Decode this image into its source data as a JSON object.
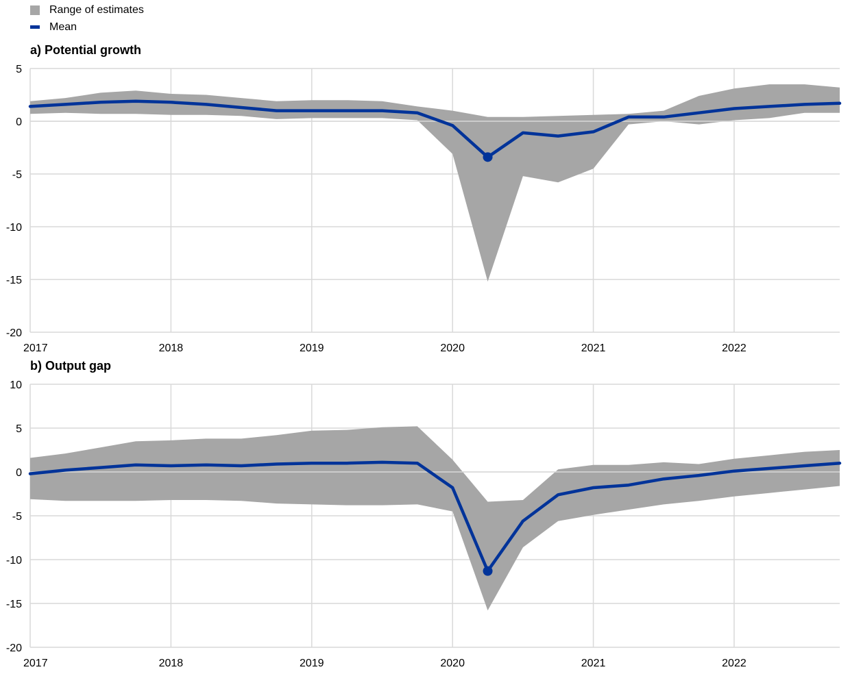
{
  "legend": {
    "range_label": "Range of estimates",
    "mean_label": "Mean",
    "range_color": "#a6a6a6",
    "mean_color": "#003399"
  },
  "chart_data": [
    {
      "type": "area",
      "title": "a) Potential growth",
      "ylim": [
        -20,
        5
      ],
      "yticks": [
        5,
        0,
        -5,
        -10,
        -15,
        -20
      ],
      "xlim": [
        2017,
        2022.75
      ],
      "xticks": [
        2017,
        2018,
        2019,
        2020,
        2021,
        2022
      ],
      "xticklabels": [
        "2017",
        "2018",
        "2019",
        "2020",
        "2021",
        "2022"
      ],
      "grid": true,
      "x": [
        2017.0,
        2017.25,
        2017.5,
        2017.75,
        2018.0,
        2018.25,
        2018.5,
        2018.75,
        2019.0,
        2019.25,
        2019.5,
        2019.75,
        2020.0,
        2020.25,
        2020.5,
        2020.75,
        2021.0,
        2021.25,
        2021.5,
        2021.75,
        2022.0,
        2022.25,
        2022.5,
        2022.75
      ],
      "series": [
        {
          "name": "Mean",
          "values": [
            1.4,
            1.6,
            1.8,
            1.9,
            1.8,
            1.6,
            1.3,
            1.0,
            1.0,
            1.0,
            1.0,
            0.8,
            -0.4,
            -3.4,
            -1.1,
            -1.4,
            -1.0,
            0.4,
            0.4,
            0.8,
            1.2,
            1.4,
            1.6,
            1.7
          ]
        },
        {
          "name": "Range of estimates - upper",
          "values": [
            1.9,
            2.2,
            2.7,
            2.9,
            2.6,
            2.5,
            2.2,
            1.9,
            2.0,
            2.0,
            1.9,
            1.4,
            1.0,
            0.4,
            0.4,
            0.5,
            0.6,
            0.7,
            1.0,
            2.4,
            3.1,
            3.5,
            3.5,
            3.2
          ]
        },
        {
          "name": "Range of estimates - lower",
          "values": [
            0.7,
            0.8,
            0.7,
            0.7,
            0.6,
            0.6,
            0.5,
            0.2,
            0.3,
            0.3,
            0.3,
            0.1,
            -3.1,
            -15.2,
            -5.2,
            -5.8,
            -4.5,
            -0.3,
            0.0,
            -0.3,
            0.1,
            0.3,
            0.8,
            0.8
          ]
        }
      ]
    },
    {
      "type": "area",
      "title": "b) Output gap",
      "ylim": [
        -20,
        10
      ],
      "yticks": [
        10,
        5,
        0,
        -5,
        -10,
        -15,
        -20
      ],
      "xlim": [
        2017,
        2022.75
      ],
      "xticks": [
        2017,
        2018,
        2019,
        2020,
        2021,
        2022
      ],
      "xticklabels": [
        "2017",
        "2018",
        "2019",
        "2020",
        "2021",
        "2022"
      ],
      "grid": true,
      "x": [
        2017.0,
        2017.25,
        2017.5,
        2017.75,
        2018.0,
        2018.25,
        2018.5,
        2018.75,
        2019.0,
        2019.25,
        2019.5,
        2019.75,
        2020.0,
        2020.25,
        2020.5,
        2020.75,
        2021.0,
        2021.25,
        2021.5,
        2021.75,
        2022.0,
        2022.25,
        2022.5,
        2022.75
      ],
      "series": [
        {
          "name": "Mean",
          "values": [
            -0.2,
            0.2,
            0.5,
            0.8,
            0.7,
            0.8,
            0.7,
            0.9,
            1.0,
            1.0,
            1.1,
            1.0,
            -1.8,
            -11.3,
            -5.6,
            -2.6,
            -1.8,
            -1.5,
            -0.8,
            -0.4,
            0.1,
            0.4,
            0.7,
            1.0
          ]
        },
        {
          "name": "Range of estimates - upper",
          "values": [
            1.6,
            2.1,
            2.8,
            3.5,
            3.6,
            3.8,
            3.8,
            4.2,
            4.7,
            4.8,
            5.1,
            5.2,
            1.4,
            -3.4,
            -3.2,
            0.3,
            0.8,
            0.8,
            1.1,
            0.9,
            1.5,
            1.9,
            2.3,
            2.5
          ]
        },
        {
          "name": "Range of estimates - lower",
          "values": [
            -3.1,
            -3.3,
            -3.3,
            -3.3,
            -3.2,
            -3.2,
            -3.3,
            -3.6,
            -3.7,
            -3.8,
            -3.8,
            -3.7,
            -4.5,
            -15.8,
            -8.6,
            -5.6,
            -4.9,
            -4.3,
            -3.7,
            -3.3,
            -2.8,
            -2.4,
            -2.0,
            -1.6
          ]
        }
      ]
    }
  ]
}
